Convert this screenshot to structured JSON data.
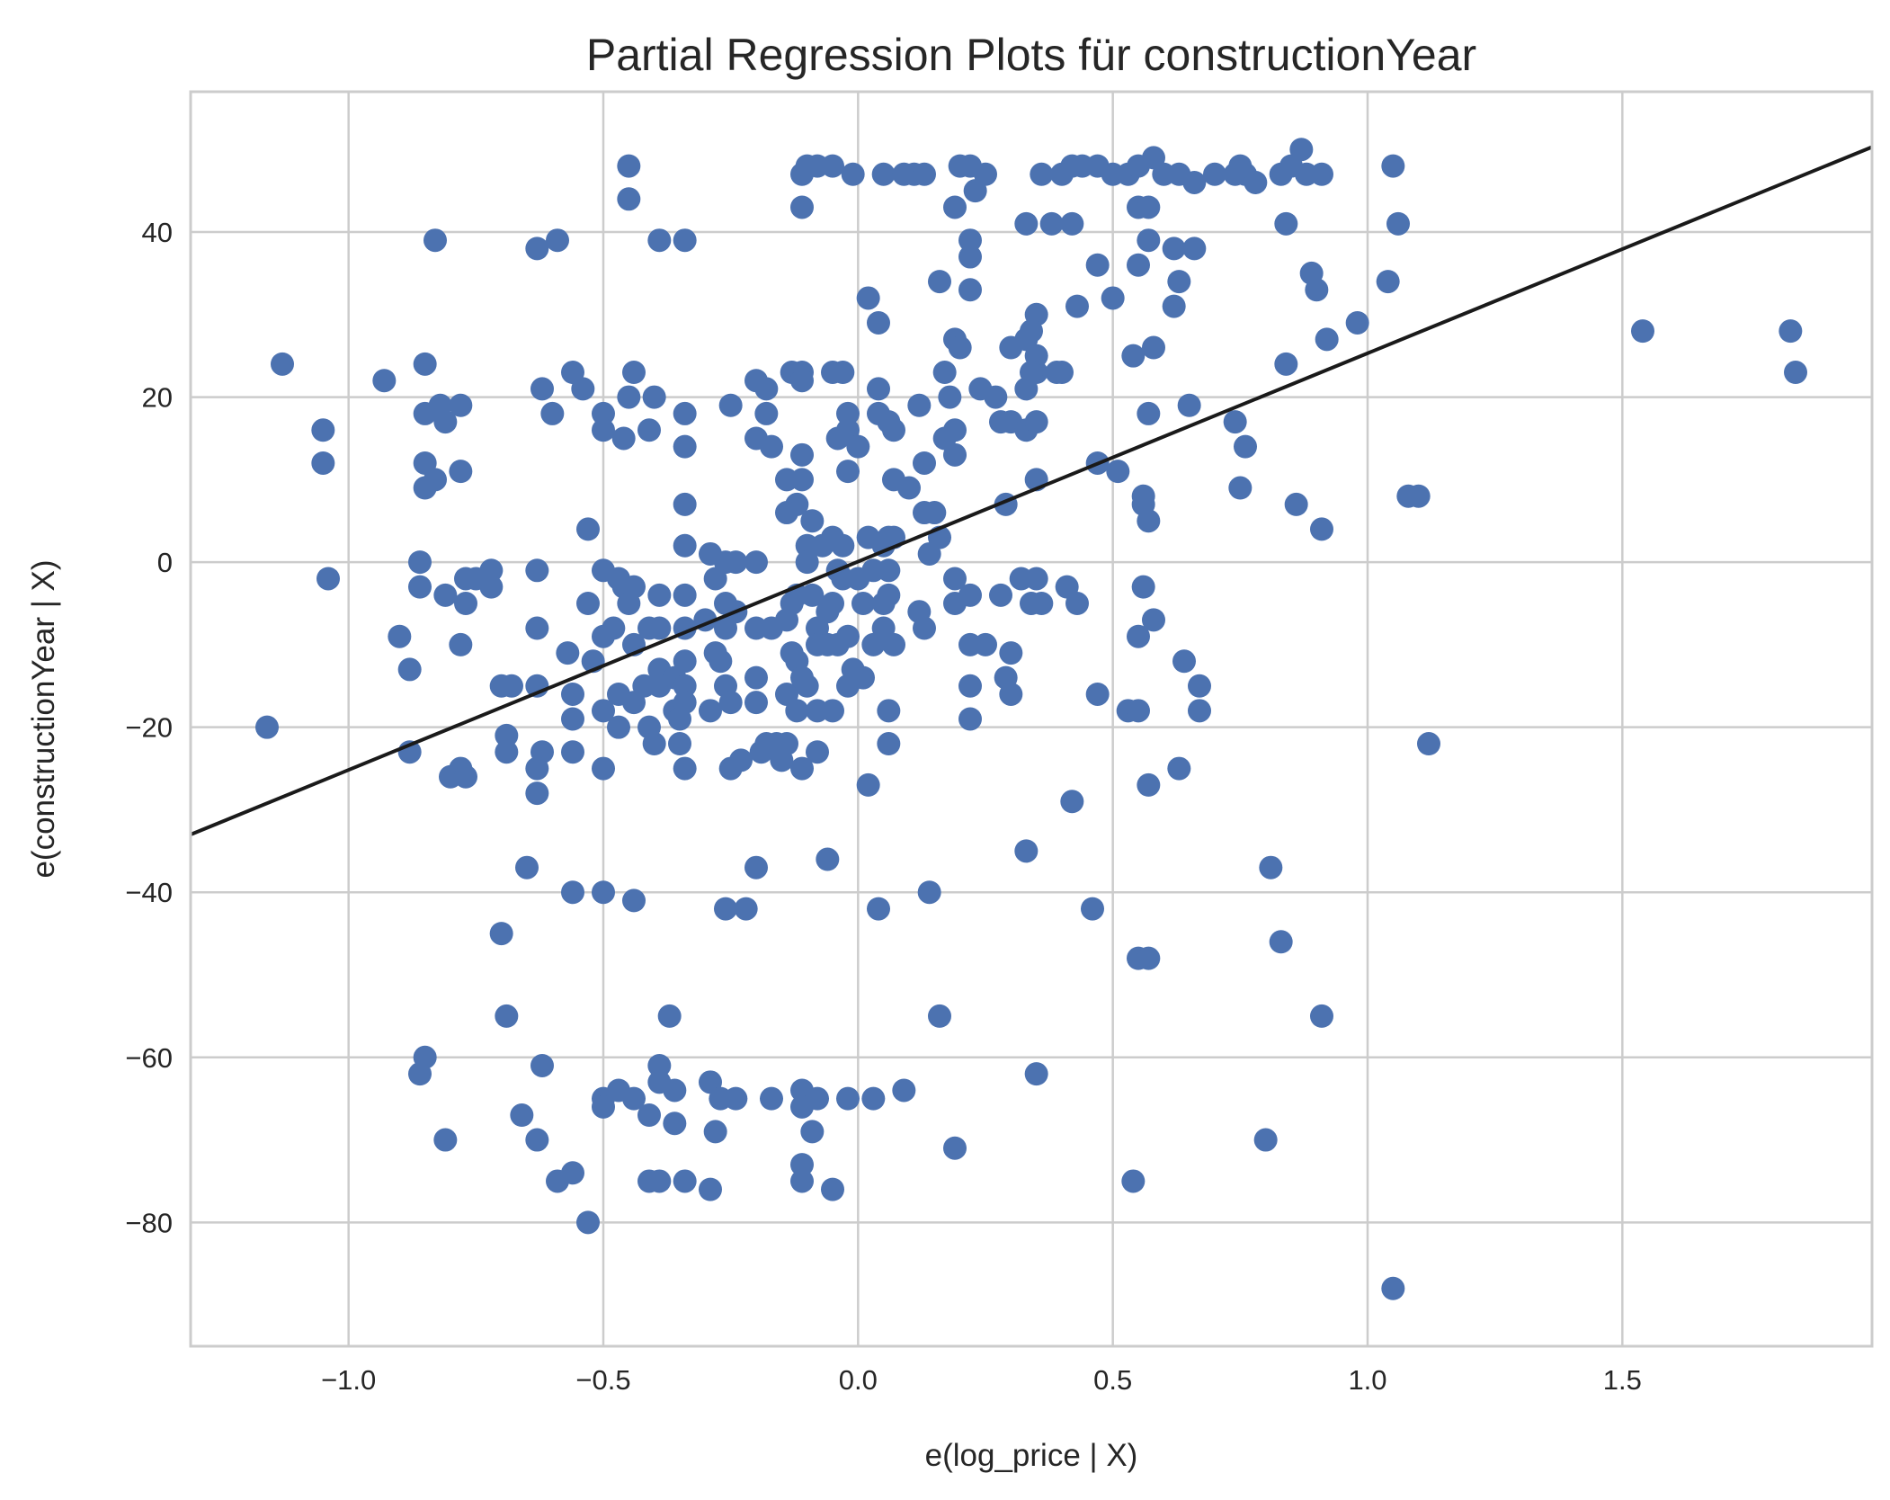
{
  "chart_data": {
    "type": "scatter",
    "title": "Partial Regression Plots für constructionYear",
    "xlabel": "e(log_price | X)",
    "ylabel": "e(constructionYear | X)",
    "xlim": [
      -1.31,
      1.99
    ],
    "ylim": [
      -95,
      57
    ],
    "xticks": [
      -1.0,
      -0.5,
      0.0,
      0.5,
      1.0,
      1.5
    ],
    "xtick_labels": [
      "−1.0",
      "−0.5",
      "0.0",
      "0.5",
      "1.0",
      "1.5"
    ],
    "yticks": [
      -80,
      -60,
      -40,
      -20,
      0,
      20,
      40
    ],
    "ytick_labels": [
      "−80",
      "−60",
      "−40",
      "−20",
      "0",
      "20",
      "40"
    ],
    "grid": true,
    "point_color": "#4c72b0",
    "line_color": "#1a1a1a",
    "fit_line": {
      "x": [
        -1.31,
        1.99
      ],
      "y": [
        -33,
        50.3
      ]
    },
    "points": [
      [
        -0.45,
        48
      ],
      [
        -0.11,
        47
      ],
      [
        -0.1,
        48
      ],
      [
        -0.08,
        48
      ],
      [
        -0.05,
        48
      ],
      [
        -0.01,
        47
      ],
      [
        0.05,
        47
      ],
      [
        0.09,
        47
      ],
      [
        0.11,
        47
      ],
      [
        0.13,
        47
      ],
      [
        0.2,
        48
      ],
      [
        0.22,
        48
      ],
      [
        0.25,
        47
      ],
      [
        0.36,
        47
      ],
      [
        0.4,
        47
      ],
      [
        0.42,
        48
      ],
      [
        0.44,
        48
      ],
      [
        0.47,
        48
      ],
      [
        0.5,
        47
      ],
      [
        0.53,
        47
      ],
      [
        0.55,
        48
      ],
      [
        0.58,
        49
      ],
      [
        0.6,
        47
      ],
      [
        0.63,
        47
      ],
      [
        0.66,
        46
      ],
      [
        0.7,
        47
      ],
      [
        0.74,
        47
      ],
      [
        0.75,
        48
      ],
      [
        0.76,
        47
      ],
      [
        0.78,
        46
      ],
      [
        0.83,
        47
      ],
      [
        0.85,
        48
      ],
      [
        0.87,
        50
      ],
      [
        0.88,
        47
      ],
      [
        0.91,
        47
      ],
      [
        1.05,
        48
      ],
      [
        -0.45,
        44
      ],
      [
        -0.11,
        43
      ],
      [
        0.19,
        43
      ],
      [
        0.55,
        43
      ],
      [
        0.57,
        43
      ],
      [
        0.23,
        45
      ],
      [
        0.33,
        41
      ],
      [
        0.38,
        41
      ],
      [
        0.42,
        41
      ],
      [
        0.84,
        41
      ],
      [
        1.06,
        41
      ],
      [
        -0.83,
        39
      ],
      [
        -0.63,
        38
      ],
      [
        -0.59,
        39
      ],
      [
        -0.39,
        39
      ],
      [
        -0.34,
        39
      ],
      [
        0.22,
        39
      ],
      [
        0.22,
        37
      ],
      [
        0.57,
        39
      ],
      [
        0.62,
        38
      ],
      [
        0.66,
        38
      ],
      [
        0.02,
        32
      ],
      [
        0.16,
        34
      ],
      [
        0.22,
        33
      ],
      [
        0.35,
        30
      ],
      [
        0.43,
        31
      ],
      [
        0.47,
        36
      ],
      [
        0.5,
        32
      ],
      [
        0.55,
        36
      ],
      [
        0.62,
        31
      ],
      [
        0.63,
        34
      ],
      [
        0.89,
        35
      ],
      [
        0.9,
        33
      ],
      [
        1.04,
        34
      ],
      [
        0.04,
        29
      ],
      [
        0.19,
        27
      ],
      [
        0.2,
        26
      ],
      [
        0.3,
        26
      ],
      [
        0.33,
        27
      ],
      [
        0.34,
        28
      ],
      [
        0.35,
        25
      ],
      [
        0.35,
        23
      ],
      [
        0.4,
        23
      ],
      [
        0.54,
        25
      ],
      [
        0.58,
        26
      ],
      [
        0.84,
        24
      ],
      [
        0.92,
        27
      ],
      [
        0.98,
        29
      ],
      [
        1.54,
        28
      ],
      [
        1.83,
        28
      ],
      [
        1.84,
        23
      ],
      [
        -1.13,
        24
      ],
      [
        -0.93,
        22
      ],
      [
        -0.85,
        24
      ],
      [
        -0.62,
        21
      ],
      [
        -0.56,
        23
      ],
      [
        -0.54,
        21
      ],
      [
        -0.44,
        23
      ],
      [
        -0.45,
        20
      ],
      [
        -0.4,
        20
      ],
      [
        -0.2,
        22
      ],
      [
        -0.18,
        21
      ],
      [
        -0.13,
        23
      ],
      [
        -0.11,
        23
      ],
      [
        -0.11,
        22
      ],
      [
        -0.05,
        23
      ],
      [
        -0.03,
        23
      ],
      [
        0.04,
        21
      ],
      [
        0.12,
        19
      ],
      [
        0.17,
        23
      ],
      [
        0.18,
        20
      ],
      [
        0.24,
        21
      ],
      [
        0.27,
        20
      ],
      [
        0.33,
        21
      ],
      [
        0.34,
        23
      ],
      [
        0.39,
        23
      ],
      [
        0.65,
        19
      ],
      [
        -1.05,
        16
      ],
      [
        -1.05,
        12
      ],
      [
        -0.85,
        18
      ],
      [
        -0.82,
        19
      ],
      [
        -0.81,
        17
      ],
      [
        -0.78,
        19
      ],
      [
        -0.6,
        18
      ],
      [
        -0.5,
        18
      ],
      [
        -0.5,
        16
      ],
      [
        -0.46,
        15
      ],
      [
        -0.41,
        16
      ],
      [
        -0.34,
        18
      ],
      [
        -0.34,
        14
      ],
      [
        -0.25,
        19
      ],
      [
        -0.2,
        15
      ],
      [
        -0.18,
        18
      ],
      [
        -0.17,
        14
      ],
      [
        -0.11,
        13
      ],
      [
        -0.04,
        15
      ],
      [
        -0.02,
        16
      ],
      [
        -0.02,
        18
      ],
      [
        0.0,
        14
      ],
      [
        0.04,
        18
      ],
      [
        0.06,
        17
      ],
      [
        0.07,
        16
      ],
      [
        0.1,
        9
      ],
      [
        0.17,
        15
      ],
      [
        0.19,
        16
      ],
      [
        0.19,
        13
      ],
      [
        0.28,
        17
      ],
      [
        0.3,
        17
      ],
      [
        0.33,
        16
      ],
      [
        0.35,
        17
      ],
      [
        0.57,
        18
      ],
      [
        0.74,
        17
      ],
      [
        0.76,
        14
      ],
      [
        -0.85,
        12
      ],
      [
        -0.85,
        9
      ],
      [
        -0.83,
        10
      ],
      [
        -0.78,
        11
      ],
      [
        -0.14,
        10
      ],
      [
        -0.11,
        10
      ],
      [
        -0.12,
        7
      ],
      [
        -0.02,
        11
      ],
      [
        0.07,
        10
      ],
      [
        0.13,
        12
      ],
      [
        0.13,
        6
      ],
      [
        0.15,
        6
      ],
      [
        0.29,
        7
      ],
      [
        0.35,
        10
      ],
      [
        0.47,
        12
      ],
      [
        0.51,
        11
      ],
      [
        0.56,
        7
      ],
      [
        0.56,
        8
      ],
      [
        0.57,
        5
      ],
      [
        0.75,
        9
      ],
      [
        0.86,
        7
      ],
      [
        0.91,
        4
      ],
      [
        1.08,
        8
      ],
      [
        1.1,
        8
      ],
      [
        -0.53,
        4
      ],
      [
        -0.34,
        7
      ],
      [
        -0.34,
        2
      ],
      [
        -0.14,
        6
      ],
      [
        -0.09,
        5
      ],
      [
        -0.1,
        2
      ],
      [
        -0.07,
        2
      ],
      [
        -0.05,
        3
      ],
      [
        -0.03,
        2
      ],
      [
        0.02,
        3
      ],
      [
        0.05,
        2
      ],
      [
        0.06,
        3
      ],
      [
        0.07,
        3
      ],
      [
        0.14,
        1
      ],
      [
        0.16,
        3
      ],
      [
        -0.86,
        0
      ],
      [
        -0.72,
        -1
      ],
      [
        -0.63,
        -1
      ],
      [
        -0.5,
        -1
      ],
      [
        -0.29,
        1
      ],
      [
        -0.26,
        0
      ],
      [
        -0.24,
        0
      ],
      [
        -0.2,
        0
      ],
      [
        -0.1,
        0
      ],
      [
        -0.04,
        -1
      ],
      [
        -0.03,
        -2
      ],
      [
        0.0,
        -2
      ],
      [
        0.03,
        -1
      ],
      [
        0.06,
        -1
      ],
      [
        -1.16,
        -20
      ],
      [
        -1.04,
        -2
      ],
      [
        -0.9,
        -9
      ],
      [
        -0.88,
        -13
      ],
      [
        -0.88,
        -23
      ],
      [
        -0.86,
        -3
      ],
      [
        -0.81,
        -4
      ],
      [
        -0.77,
        -2
      ],
      [
        -0.77,
        -5
      ],
      [
        -0.78,
        -10
      ],
      [
        -0.78,
        -25
      ],
      [
        -0.8,
        -26
      ],
      [
        -0.77,
        -26
      ],
      [
        -0.75,
        -2
      ],
      [
        -0.72,
        -3
      ],
      [
        -0.7,
        -15
      ],
      [
        -0.68,
        -15
      ],
      [
        -0.69,
        -21
      ],
      [
        -0.69,
        -23
      ],
      [
        -0.63,
        -8
      ],
      [
        -0.63,
        -15
      ],
      [
        -0.62,
        -23
      ],
      [
        -0.63,
        -25
      ],
      [
        -0.63,
        -28
      ],
      [
        -0.57,
        -11
      ],
      [
        -0.56,
        -16
      ],
      [
        -0.56,
        -19
      ],
      [
        -0.56,
        -23
      ],
      [
        -0.53,
        -5
      ],
      [
        -0.52,
        -12
      ],
      [
        -0.5,
        -9
      ],
      [
        -0.5,
        -18
      ],
      [
        -0.5,
        -25
      ],
      [
        -0.48,
        -8
      ],
      [
        -0.47,
        -2
      ],
      [
        -0.46,
        -3
      ],
      [
        -0.47,
        -20
      ],
      [
        -0.47,
        -16
      ],
      [
        -0.45,
        -5
      ],
      [
        -0.44,
        -3
      ],
      [
        -0.44,
        -10
      ],
      [
        -0.44,
        -17
      ],
      [
        -0.42,
        -15
      ],
      [
        -0.41,
        -20
      ],
      [
        -0.41,
        -8
      ],
      [
        -0.39,
        -4
      ],
      [
        -0.39,
        -13
      ],
      [
        -0.39,
        -8
      ],
      [
        -0.39,
        -15
      ],
      [
        -0.4,
        -22
      ],
      [
        -0.36,
        -14
      ],
      [
        -0.36,
        -18
      ],
      [
        -0.34,
        -4
      ],
      [
        -0.34,
        -8
      ],
      [
        -0.34,
        -12
      ],
      [
        -0.34,
        -15
      ],
      [
        -0.34,
        -17
      ],
      [
        -0.35,
        -19
      ],
      [
        -0.35,
        -22
      ],
      [
        -0.34,
        -25
      ],
      [
        -0.3,
        -7
      ],
      [
        -0.29,
        -18
      ],
      [
        -0.28,
        -2
      ],
      [
        -0.28,
        -11
      ],
      [
        -0.27,
        -12
      ],
      [
        -0.26,
        -5
      ],
      [
        -0.26,
        -8
      ],
      [
        -0.26,
        -15
      ],
      [
        -0.25,
        -17
      ],
      [
        -0.25,
        -25
      ],
      [
        -0.24,
        -6
      ],
      [
        -0.23,
        -24
      ],
      [
        -0.2,
        -8
      ],
      [
        -0.2,
        -14
      ],
      [
        -0.2,
        -17
      ],
      [
        -0.19,
        -23
      ],
      [
        -0.18,
        -22
      ],
      [
        -0.17,
        -8
      ],
      [
        -0.16,
        -22
      ],
      [
        -0.15,
        -24
      ],
      [
        -0.14,
        -7
      ],
      [
        -0.14,
        -16
      ],
      [
        -0.14,
        -22
      ],
      [
        -0.13,
        -5
      ],
      [
        -0.13,
        -11
      ],
      [
        -0.12,
        -4
      ],
      [
        -0.12,
        -12
      ],
      [
        -0.11,
        -14
      ],
      [
        -0.12,
        -18
      ],
      [
        -0.11,
        -25
      ],
      [
        -0.1,
        -15
      ],
      [
        -0.09,
        -4
      ],
      [
        -0.08,
        -8
      ],
      [
        -0.08,
        -10
      ],
      [
        -0.08,
        -18
      ],
      [
        -0.08,
        -23
      ],
      [
        -0.06,
        -6
      ],
      [
        -0.06,
        -10
      ],
      [
        -0.05,
        -18
      ],
      [
        -0.05,
        -5
      ],
      [
        -0.04,
        -10
      ],
      [
        -0.02,
        -9
      ],
      [
        -0.02,
        -15
      ],
      [
        -0.01,
        -13
      ],
      [
        0.01,
        -5
      ],
      [
        0.01,
        -14
      ],
      [
        0.03,
        -10
      ],
      [
        0.05,
        -5
      ],
      [
        0.05,
        -8
      ],
      [
        0.06,
        -4
      ],
      [
        0.06,
        -18
      ],
      [
        0.06,
        -22
      ],
      [
        0.07,
        -10
      ],
      [
        0.12,
        -6
      ],
      [
        0.13,
        -8
      ],
      [
        0.19,
        -2
      ],
      [
        0.19,
        -5
      ],
      [
        0.22,
        -4
      ],
      [
        0.22,
        -10
      ],
      [
        0.22,
        -15
      ],
      [
        0.22,
        -19
      ],
      [
        0.25,
        -10
      ],
      [
        0.28,
        -4
      ],
      [
        0.29,
        -14
      ],
      [
        0.3,
        -16
      ],
      [
        0.3,
        -11
      ],
      [
        0.32,
        -2
      ],
      [
        0.34,
        -5
      ],
      [
        0.35,
        -2
      ],
      [
        0.36,
        -5
      ],
      [
        0.41,
        -3
      ],
      [
        0.43,
        -5
      ],
      [
        0.47,
        -16
      ],
      [
        0.53,
        -18
      ],
      [
        0.55,
        -18
      ],
      [
        0.55,
        -9
      ],
      [
        0.56,
        -3
      ],
      [
        0.58,
        -7
      ],
      [
        0.64,
        -12
      ],
      [
        0.67,
        -15
      ],
      [
        0.67,
        -18
      ],
      [
        1.12,
        -22
      ],
      [
        0.02,
        -27
      ],
      [
        0.42,
        -29
      ],
      [
        0.57,
        -27
      ],
      [
        0.63,
        -25
      ],
      [
        -0.65,
        -37
      ],
      [
        -0.56,
        -40
      ],
      [
        -0.5,
        -40
      ],
      [
        -0.44,
        -41
      ],
      [
        -0.26,
        -42
      ],
      [
        -0.22,
        -42
      ],
      [
        -0.2,
        -37
      ],
      [
        -0.06,
        -36
      ],
      [
        0.04,
        -42
      ],
      [
        0.14,
        -40
      ],
      [
        0.33,
        -35
      ],
      [
        0.46,
        -42
      ],
      [
        0.81,
        -37
      ],
      [
        -0.7,
        -45
      ],
      [
        -0.69,
        -55
      ],
      [
        -0.37,
        -55
      ],
      [
        0.16,
        -55
      ],
      [
        0.55,
        -48
      ],
      [
        0.57,
        -48
      ],
      [
        0.83,
        -46
      ],
      [
        0.91,
        -55
      ],
      [
        -0.85,
        -60
      ],
      [
        -0.86,
        -62
      ],
      [
        -0.62,
        -61
      ],
      [
        -0.5,
        -65
      ],
      [
        -0.5,
        -66
      ],
      [
        -0.47,
        -64
      ],
      [
        -0.44,
        -65
      ],
      [
        -0.41,
        -67
      ],
      [
        -0.39,
        -61
      ],
      [
        -0.39,
        -63
      ],
      [
        -0.36,
        -64
      ],
      [
        -0.36,
        -68
      ],
      [
        -0.29,
        -63
      ],
      [
        -0.28,
        -69
      ],
      [
        -0.27,
        -65
      ],
      [
        -0.24,
        -65
      ],
      [
        -0.17,
        -65
      ],
      [
        -0.11,
        -64
      ],
      [
        -0.11,
        -66
      ],
      [
        -0.09,
        -69
      ],
      [
        -0.08,
        -65
      ],
      [
        -0.02,
        -65
      ],
      [
        0.03,
        -65
      ],
      [
        0.09,
        -64
      ],
      [
        0.35,
        -62
      ],
      [
        -0.81,
        -70
      ],
      [
        -0.66,
        -67
      ],
      [
        -0.63,
        -70
      ],
      [
        -0.59,
        -75
      ],
      [
        -0.56,
        -74
      ],
      [
        -0.53,
        -80
      ],
      [
        -0.41,
        -75
      ],
      [
        -0.39,
        -75
      ],
      [
        -0.34,
        -75
      ],
      [
        -0.29,
        -76
      ],
      [
        -0.11,
        -73
      ],
      [
        -0.11,
        -75
      ],
      [
        -0.05,
        -76
      ],
      [
        0.19,
        -71
      ],
      [
        0.54,
        -75
      ],
      [
        0.8,
        -70
      ],
      [
        1.05,
        -88
      ]
    ]
  }
}
